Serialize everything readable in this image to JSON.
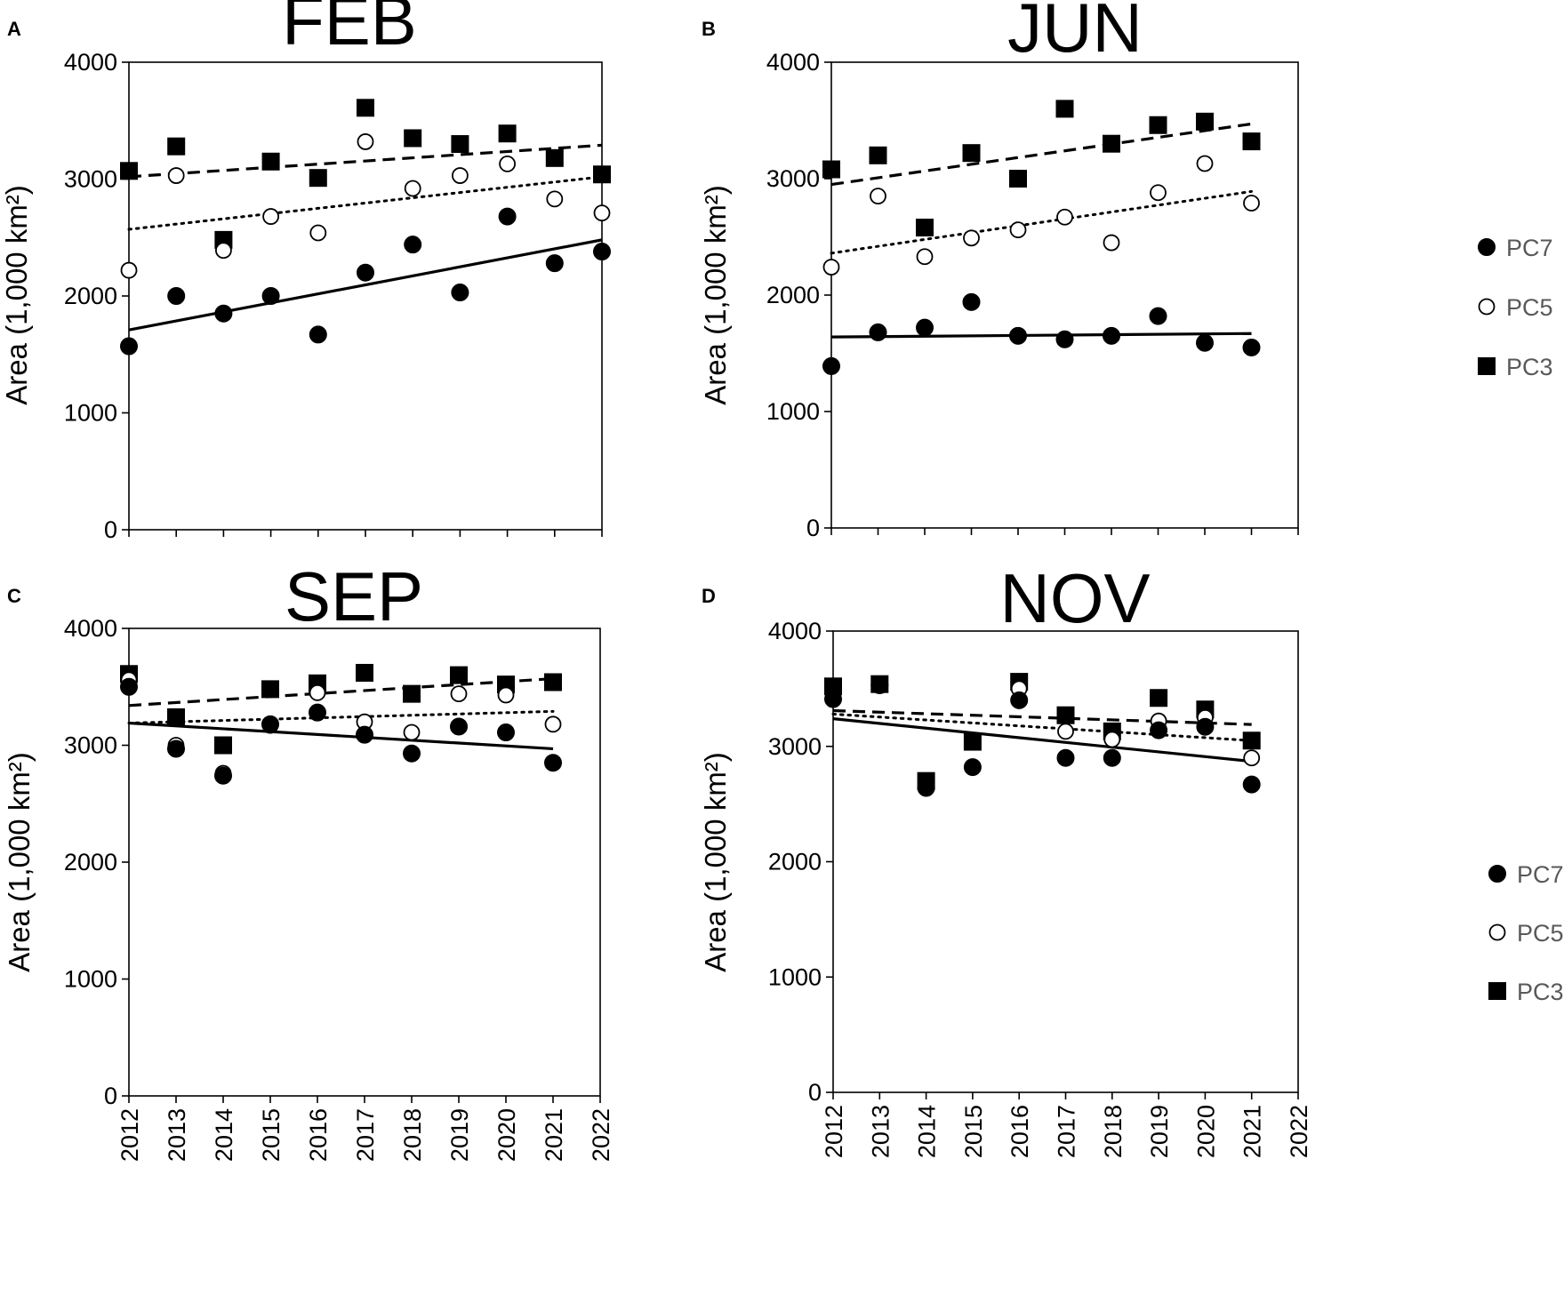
{
  "legend": [
    {
      "key": "PC7",
      "label": "PC7",
      "marker": "filled-circle"
    },
    {
      "key": "PC5",
      "label": "PC5",
      "marker": "open-circle"
    },
    {
      "key": "PC3",
      "label": "PC3",
      "marker": "filled-square"
    }
  ],
  "chart_data": [
    {
      "type": "scatter",
      "panel": "A",
      "title": "FEB",
      "xlabel": "",
      "ylabel": "Area (1,000 km²)",
      "xlim": [
        2012,
        2022
      ],
      "ylim": [
        0,
        4000
      ],
      "yticks": [
        0,
        1000,
        2000,
        3000,
        4000
      ],
      "xticks": [
        2012,
        2013,
        2014,
        2015,
        2016,
        2017,
        2018,
        2019,
        2020,
        2021,
        2022
      ],
      "show_x_tick_labels": false,
      "show_legend": false,
      "x": [
        2012,
        2013,
        2014,
        2015,
        2016,
        2017,
        2018,
        2019,
        2020,
        2021,
        2022
      ],
      "series": [
        {
          "name": "PC7",
          "values": [
            1570,
            2000,
            1850,
            2000,
            1670,
            2200,
            2440,
            2030,
            2680,
            2280,
            2380
          ],
          "trend": [
            1710,
            2480
          ],
          "line": "solid"
        },
        {
          "name": "PC5",
          "values": [
            2220,
            3030,
            2390,
            2680,
            2540,
            3320,
            2920,
            3030,
            3130,
            2830,
            2710
          ],
          "trend": [
            2570,
            3020
          ],
          "line": "dotted"
        },
        {
          "name": "PC3",
          "values": [
            3070,
            3280,
            2480,
            3150,
            3010,
            3610,
            3350,
            3300,
            3390,
            3180,
            3040
          ],
          "trend": [
            3020,
            3290
          ],
          "line": "dashed"
        }
      ]
    },
    {
      "type": "scatter",
      "panel": "B",
      "title": "JUN",
      "xlabel": "",
      "ylabel": "Area (1,000 km²)",
      "xlim": [
        2012,
        2022
      ],
      "ylim": [
        0,
        4000
      ],
      "yticks": [
        0,
        1000,
        2000,
        3000,
        4000
      ],
      "xticks": [
        2012,
        2013,
        2014,
        2015,
        2016,
        2017,
        2018,
        2019,
        2020,
        2021,
        2022
      ],
      "show_x_tick_labels": false,
      "show_legend": true,
      "x": [
        2012,
        2013,
        2014,
        2015,
        2016,
        2017,
        2018,
        2019,
        2020,
        2021
      ],
      "series": [
        {
          "name": "PC7",
          "values": [
            1390,
            1680,
            1720,
            1940,
            1650,
            1620,
            1650,
            1820,
            1590,
            1550
          ],
          "trend": [
            1640,
            1670
          ],
          "line": "solid"
        },
        {
          "name": "PC5",
          "values": [
            2240,
            2850,
            2330,
            2490,
            2560,
            2670,
            2450,
            2880,
            3130,
            2790
          ],
          "trend": [
            2360,
            2890
          ],
          "line": "dotted"
        },
        {
          "name": "PC3",
          "values": [
            3080,
            3200,
            2580,
            3220,
            3000,
            3600,
            3300,
            3460,
            3490,
            3320
          ],
          "trend": [
            2950,
            3470
          ],
          "line": "dashed"
        }
      ]
    },
    {
      "type": "scatter",
      "panel": "C",
      "title": "SEP",
      "xlabel": "",
      "ylabel": "Area (1,000 km²)",
      "xlim": [
        2012,
        2022
      ],
      "ylim": [
        0,
        4000
      ],
      "yticks": [
        0,
        1000,
        2000,
        3000,
        4000
      ],
      "xticks": [
        2012,
        2013,
        2014,
        2015,
        2016,
        2017,
        2018,
        2019,
        2020,
        2021,
        2022
      ],
      "show_x_tick_labels": true,
      "show_legend": false,
      "x": [
        2012,
        2013,
        2014,
        2015,
        2016,
        2017,
        2018,
        2019,
        2020,
        2021
      ],
      "series": [
        {
          "name": "PC7",
          "values": [
            3500,
            2970,
            2740,
            3180,
            3280,
            3090,
            2930,
            3160,
            3110,
            2850
          ],
          "trend": [
            3190,
            2970
          ],
          "line": "solid"
        },
        {
          "name": "PC5",
          "values": [
            3560,
            3000,
            2760,
            3170,
            3450,
            3200,
            3110,
            3440,
            3430,
            3180
          ],
          "trend": [
            3190,
            3290
          ],
          "line": "dotted"
        },
        {
          "name": "PC3",
          "values": [
            3610,
            3240,
            3000,
            3480,
            3530,
            3620,
            3440,
            3600,
            3520,
            3540
          ],
          "trend": [
            3340,
            3570
          ],
          "line": "dashed"
        }
      ]
    },
    {
      "type": "scatter",
      "panel": "D",
      "title": "NOV",
      "xlabel": "",
      "ylabel": "Area (1,000 km²)",
      "xlim": [
        2012,
        2022
      ],
      "ylim": [
        0,
        4000
      ],
      "yticks": [
        0,
        1000,
        2000,
        3000,
        4000
      ],
      "xticks": [
        2012,
        2013,
        2014,
        2015,
        2016,
        2017,
        2018,
        2019,
        2020,
        2021,
        2022
      ],
      "show_x_tick_labels": true,
      "show_legend": true,
      "x": [
        2012,
        2013,
        2014,
        2015,
        2016,
        2017,
        2018,
        2019,
        2020,
        2021
      ],
      "series": [
        {
          "name": "PC7",
          "values": [
            3410,
            3530,
            2640,
            2820,
            3400,
            2900,
            2900,
            3140,
            3170,
            2670
          ],
          "trend": [
            3240,
            2870
          ],
          "line": "solid"
        },
        {
          "name": "PC5",
          "values": [
            3410,
            3540,
            2640,
            2820,
            3500,
            3130,
            3060,
            3220,
            3250,
            2900
          ],
          "trend": [
            3280,
            3050
          ],
          "line": "dotted"
        },
        {
          "name": "PC3",
          "values": [
            3520,
            3540,
            2700,
            3040,
            3560,
            3270,
            3130,
            3420,
            3320,
            3050
          ],
          "trend": [
            3310,
            3190
          ],
          "line": "dashed"
        }
      ]
    }
  ]
}
